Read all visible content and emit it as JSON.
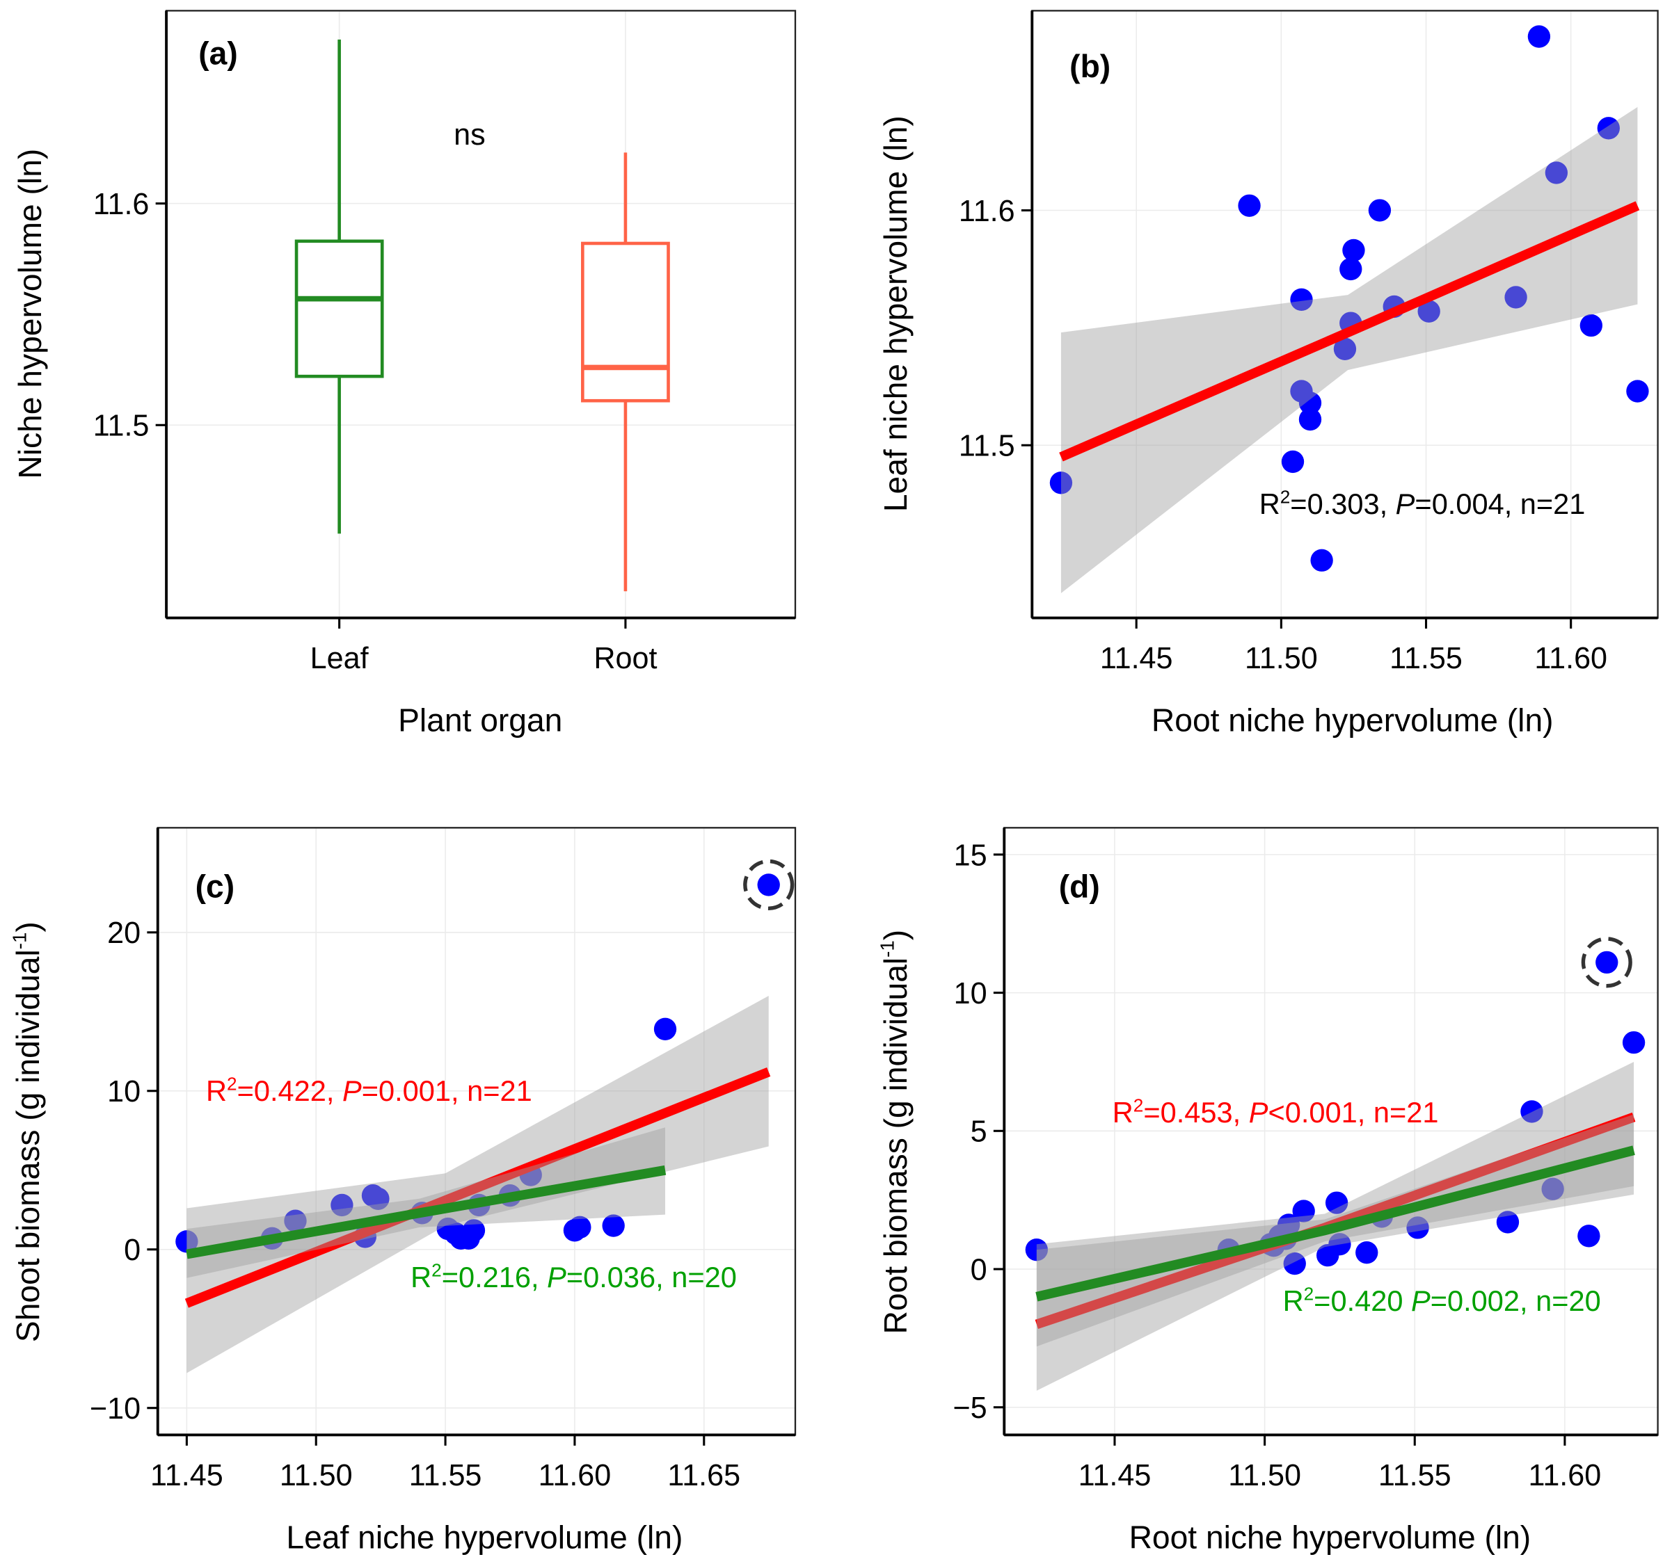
{
  "colors": {
    "point": "#0000ff",
    "fit_all": "#ff0000",
    "fit_subset": "#228b22",
    "leaf": "#228b22",
    "root": "#ff6347",
    "band": "#a9a9a9"
  },
  "chart_data": [
    {
      "panel": "(a)",
      "type": "box",
      "categories": [
        "Leaf",
        "Root"
      ],
      "boxes": [
        {
          "min": 11.451,
          "q1": 11.522,
          "median": 11.557,
          "q3": 11.583,
          "max": 11.674,
          "color": "#228b22"
        },
        {
          "min": 11.425,
          "q1": 11.511,
          "median": 11.526,
          "q3": 11.582,
          "max": 11.623,
          "color": "#ff6347"
        }
      ],
      "annotation": "ns",
      "xlabel": "Plant organ",
      "ylabel": "Niche hypervolume (ln)",
      "yticks": [
        11.5,
        11.6
      ],
      "ytick_labels": [
        "11.5",
        "11.6"
      ],
      "ylim": [
        11.413,
        11.687
      ],
      "grid": true
    },
    {
      "panel": "(b)",
      "type": "scatter",
      "xlabel": "Root niche hypervolume (ln)",
      "ylabel": "Leaf niche hypervolume (ln)",
      "xticks": [
        11.45,
        11.5,
        11.55,
        11.6
      ],
      "xtick_labels": [
        "11.45",
        "11.50",
        "11.55",
        "11.60"
      ],
      "yticks": [
        11.5,
        11.6
      ],
      "ytick_labels": [
        "11.5",
        "11.6"
      ],
      "xlim": [
        11.414,
        11.63
      ],
      "ylim": [
        11.4265,
        11.685
      ],
      "grid": true,
      "points": [
        [
          11.424,
          11.484
        ],
        [
          11.489,
          11.602
        ],
        [
          11.589,
          11.674
        ],
        [
          11.613,
          11.635
        ],
        [
          11.595,
          11.616
        ],
        [
          11.534,
          11.6
        ],
        [
          11.525,
          11.583
        ],
        [
          11.524,
          11.575
        ],
        [
          11.507,
          11.562
        ],
        [
          11.539,
          11.559
        ],
        [
          11.551,
          11.557
        ],
        [
          11.581,
          11.563
        ],
        [
          11.524,
          11.552
        ],
        [
          11.522,
          11.541
        ],
        [
          11.607,
          11.551
        ],
        [
          11.507,
          11.523
        ],
        [
          11.51,
          11.518
        ],
        [
          11.51,
          11.511
        ],
        [
          11.623,
          11.523
        ],
        [
          11.504,
          11.493
        ],
        [
          11.514,
          11.451
        ]
      ],
      "circled_points": [],
      "fits": [
        {
          "color": "#ff0000",
          "x": [
            11.424,
            11.523,
            11.623
          ],
          "y": [
            11.495,
            11.548,
            11.602
          ],
          "ci_lower": [
            11.437,
            11.532,
            11.56
          ],
          "ci_upper": [
            11.548,
            11.564,
            11.644
          ],
          "label": [
            "R",
            "2",
            "=0.303, ",
            "P",
            "=0.004, n=21"
          ],
          "label_color": "#000000"
        }
      ]
    },
    {
      "panel": "(c)",
      "type": "scatter",
      "xlabel": "Leaf niche hypervolume (ln)",
      "ylabel": [
        "Shoot biomass (g individual",
        "-1",
        ")"
      ],
      "xticks": [
        11.45,
        11.5,
        11.55,
        11.6,
        11.65
      ],
      "xtick_labels": [
        "11.45",
        "11.50",
        "11.55",
        "11.60",
        "11.65"
      ],
      "yticks": [
        -10,
        0,
        10,
        20
      ],
      "ytick_labels": [
        "−10",
        "0",
        "10",
        "20"
      ],
      "xlim": [
        11.4388,
        11.6853
      ],
      "ylim": [
        -11.7,
        26.6
      ],
      "grid": true,
      "points": [
        [
          11.45,
          0.5
        ],
        [
          11.483,
          0.7
        ],
        [
          11.492,
          1.8
        ],
        [
          11.51,
          2.8
        ],
        [
          11.522,
          3.4
        ],
        [
          11.519,
          0.8
        ],
        [
          11.541,
          2.3
        ],
        [
          11.551,
          1.3
        ],
        [
          11.556,
          0.7
        ],
        [
          11.559,
          0.7
        ],
        [
          11.561,
          1.2
        ],
        [
          11.563,
          2.8
        ],
        [
          11.575,
          3.4
        ],
        [
          11.583,
          4.7
        ],
        [
          11.6,
          1.2
        ],
        [
          11.602,
          1.4
        ],
        [
          11.615,
          1.5
        ],
        [
          11.635,
          13.9
        ],
        [
          11.675,
          23.0
        ],
        [
          11.524,
          3.2
        ],
        [
          11.554,
          1.0
        ]
      ],
      "circled_points": [
        [
          11.675,
          23.0
        ]
      ],
      "fits": [
        {
          "color": "#ff0000",
          "x": [
            11.45,
            11.55,
            11.675
          ],
          "y": [
            -3.4,
            3.1,
            11.2
          ],
          "ci_lower": [
            -7.8,
            1.5,
            6.5
          ],
          "ci_upper": [
            2.6,
            4.8,
            16.0
          ],
          "label": [
            "R",
            "2",
            "=0.422, ",
            "P",
            "=0.001, n=21"
          ],
          "label_color": "#ff0000"
        },
        {
          "color": "#228b22",
          "x": [
            11.45,
            11.54,
            11.635
          ],
          "y": [
            -0.3,
            2.3,
            5.0
          ],
          "ci_lower": [
            -1.8,
            1.4,
            2.2
          ],
          "ci_upper": [
            1.3,
            3.2,
            7.7
          ],
          "label": [
            "R",
            "2",
            "=0.216, ",
            "P",
            "=0.036, n=20"
          ],
          "label_color": "#00a000"
        }
      ]
    },
    {
      "panel": "(d)",
      "type": "scatter",
      "xlabel": "Root niche hypervolume (ln)",
      "ylabel": [
        "Root biomass (g individual",
        "-1",
        ")"
      ],
      "xticks": [
        11.45,
        11.5,
        11.55,
        11.6
      ],
      "xtick_labels": [
        "11.45",
        "11.50",
        "11.55",
        "11.60"
      ],
      "yticks": [
        -5,
        0,
        5,
        10,
        15
      ],
      "ytick_labels": [
        "−5",
        "0",
        "5",
        "10",
        "15"
      ],
      "xlim": [
        11.4132,
        11.631
      ],
      "ylim": [
        -6.0,
        15.97
      ],
      "grid": true,
      "points": [
        [
          11.424,
          0.7
        ],
        [
          11.488,
          0.7
        ],
        [
          11.503,
          0.85
        ],
        [
          11.505,
          1.2
        ],
        [
          11.508,
          1.6
        ],
        [
          11.51,
          0.2
        ],
        [
          11.513,
          2.1
        ],
        [
          11.521,
          0.5
        ],
        [
          11.524,
          2.4
        ],
        [
          11.525,
          0.9
        ],
        [
          11.534,
          0.6
        ],
        [
          11.539,
          1.9
        ],
        [
          11.551,
          1.5
        ],
        [
          11.581,
          1.7
        ],
        [
          11.589,
          5.7
        ],
        [
          11.596,
          2.9
        ],
        [
          11.608,
          1.2
        ],
        [
          11.614,
          11.1
        ],
        [
          11.623,
          8.2
        ],
        [
          11.507,
          1.1
        ],
        [
          11.502,
          0.9
        ]
      ],
      "circled_points": [
        [
          11.614,
          11.1
        ]
      ],
      "fits": [
        {
          "color": "#ff0000",
          "x": [
            11.424,
            11.52,
            11.623
          ],
          "y": [
            -2.0,
            1.5,
            5.5
          ],
          "ci_lower": [
            -4.4,
            0.8,
            2.7
          ],
          "ci_upper": [
            0.9,
            2.0,
            7.5
          ],
          "label": [
            "R",
            "2",
            "=0.453, ",
            "P",
            "<0.001, n=21"
          ],
          "label_color": "#ff0000"
        },
        {
          "color": "#228b22",
          "x": [
            11.424,
            11.52,
            11.623
          ],
          "y": [
            -1.0,
            1.4,
            4.3
          ],
          "ci_lower": [
            -2.8,
            1.0,
            3.0
          ],
          "ci_upper": [
            0.7,
            1.8,
            5.6
          ],
          "label": [
            "R",
            "2",
            "=0.420 ",
            "P",
            "=0.002, n=20"
          ],
          "label_color": "#00a000"
        }
      ]
    }
  ]
}
